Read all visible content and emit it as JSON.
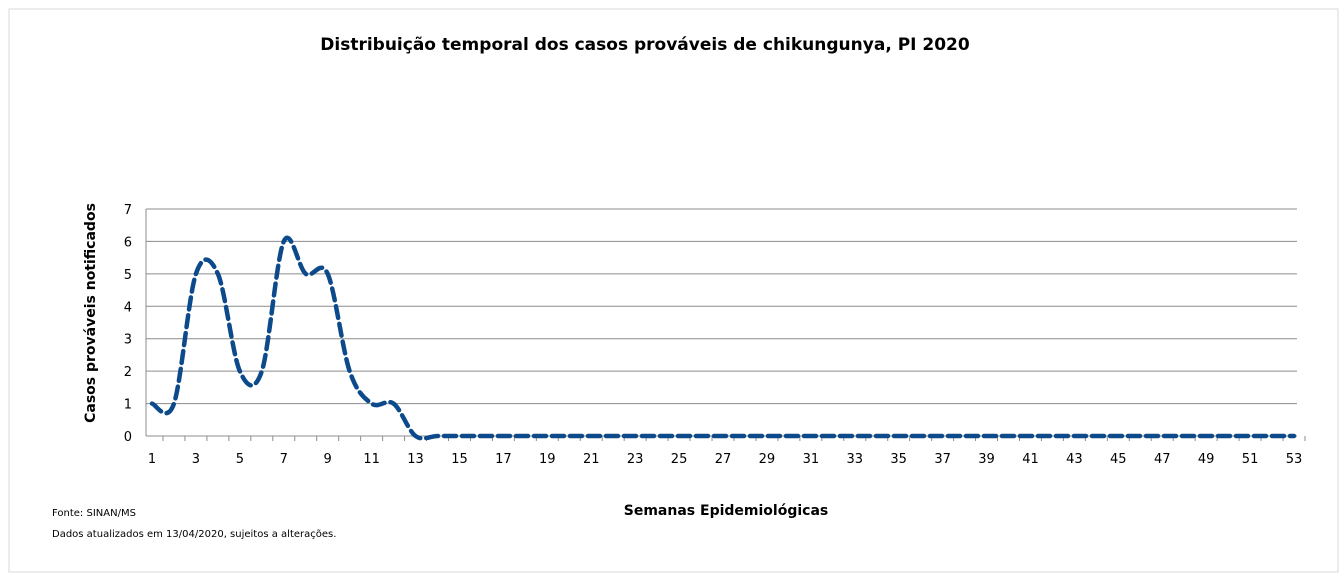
{
  "chart_data": {
    "type": "line",
    "title": "Distribuição temporal dos casos prováveis de chikungunya, PI 2020",
    "y_label": "Casos prováveis notificados",
    "x_label": "Semanas Epidemiológicas",
    "source": "Fonte: SINAN/MS",
    "note": "Dados atualizados em 13/04/2020, sujeitos a alterações.",
    "categories": [
      "1",
      null,
      "3",
      null,
      "5",
      null,
      "7",
      null,
      "9",
      null,
      "11",
      null,
      "13",
      null,
      "15",
      null,
      "17",
      null,
      "19",
      null,
      "21",
      null,
      "23",
      null,
      "25",
      null,
      "27",
      null,
      "29",
      null,
      "31",
      null,
      "33",
      null,
      "35",
      null,
      "37",
      null,
      "39",
      null,
      "41",
      null,
      "43",
      null,
      "45",
      null,
      "47",
      null,
      "49",
      null,
      "51",
      null,
      "53"
    ],
    "series": [
      {
        "name": "Casos prováveis",
        "color": "#0d4a8c",
        "values": [
          1,
          1,
          5,
          5,
          2,
          2,
          6,
          5,
          5,
          2,
          1,
          1,
          0,
          0,
          0,
          0,
          0,
          0,
          0,
          0,
          0,
          0,
          0,
          0,
          0,
          0,
          0,
          0,
          0,
          0,
          0,
          0,
          0,
          0,
          0,
          0,
          0,
          0,
          0,
          0,
          0,
          0,
          0,
          0,
          0,
          0,
          0,
          0,
          0,
          0,
          0,
          0,
          0
        ]
      }
    ],
    "ylim": [
      0,
      7
    ],
    "yticks": [
      0,
      1,
      2,
      3,
      4,
      5,
      6,
      7
    ],
    "grid": true,
    "smooth": true,
    "dashed": true
  }
}
